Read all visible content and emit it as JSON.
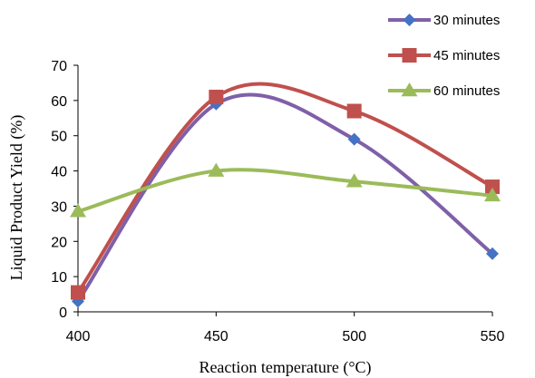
{
  "chart_data": {
    "type": "line",
    "title": "",
    "xlabel": "Reaction temperature (°C)",
    "ylabel": "Liquid Product Yield (%)",
    "x": [
      400,
      450,
      500,
      550
    ],
    "x_ticks": [
      "400",
      "450",
      "500",
      "550"
    ],
    "y_ticks": [
      "0",
      "10",
      "20",
      "30",
      "40",
      "50",
      "60",
      "70"
    ],
    "xlim": [
      400,
      550
    ],
    "ylim": [
      0,
      70
    ],
    "grid": false,
    "smooth": true,
    "legend_position": "top-right",
    "series": [
      {
        "name": "30 minutes",
        "values": [
          3,
          59,
          49,
          16.5
        ],
        "color": "#7f60a8",
        "marker_color": "#4472c4",
        "marker": "diamond"
      },
      {
        "name": "45 minutes",
        "values": [
          5.5,
          61,
          57,
          35.5
        ],
        "color": "#c0504d",
        "marker_color": "#c0504d",
        "marker": "square"
      },
      {
        "name": "60 minutes",
        "values": [
          28.5,
          40,
          37,
          33
        ],
        "color": "#9bbb59",
        "marker_color": "#9bbb59",
        "marker": "triangle"
      }
    ]
  }
}
